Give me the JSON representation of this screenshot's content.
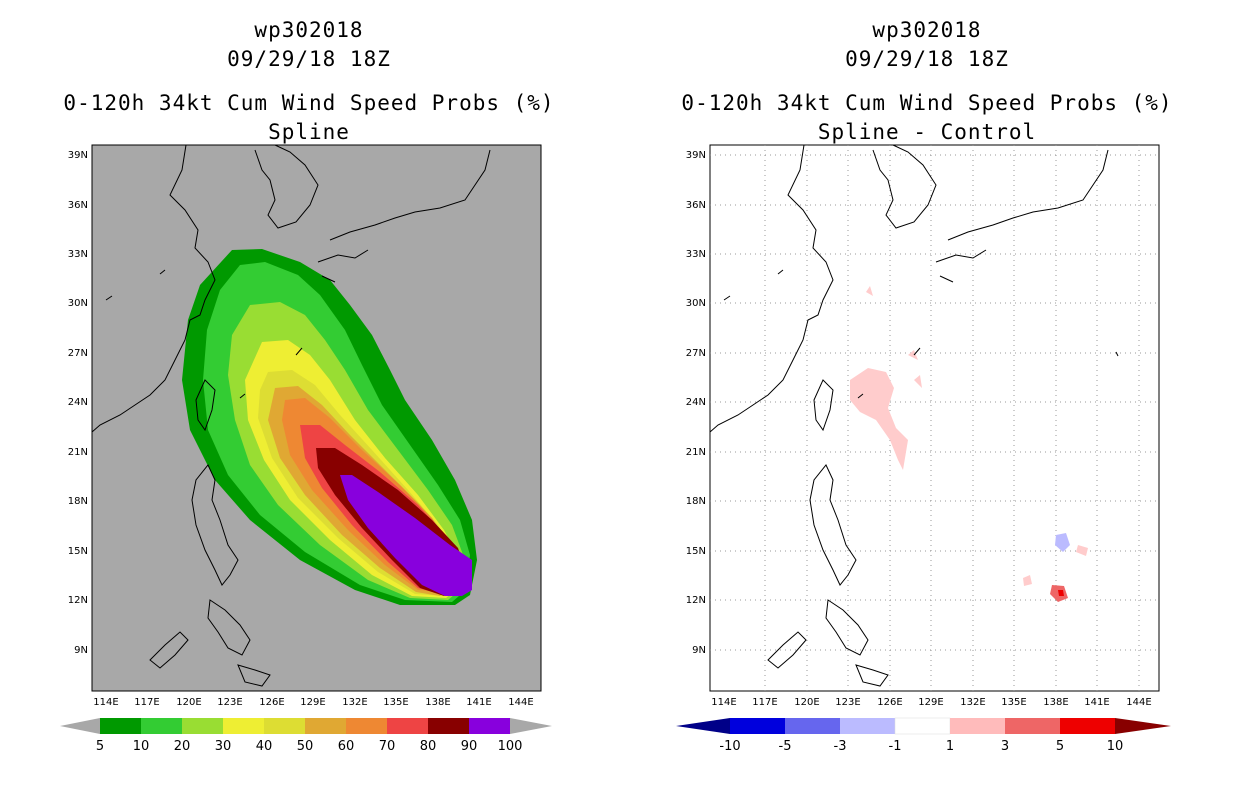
{
  "panels": [
    {
      "id": "left",
      "storm_id": "wp302018",
      "datetime": "09/29/18 18Z",
      "product": "0-120h 34kt Cum Wind Speed Probs (%)",
      "subtitle": "Spline",
      "background": "#a8a8a8",
      "lat_labels": [
        "39N",
        "36N",
        "33N",
        "30N",
        "27N",
        "24N",
        "21N",
        "18N",
        "15N",
        "12N",
        "9N"
      ],
      "lon_labels": [
        "114E",
        "117E",
        "120E",
        "123E",
        "126E",
        "129E",
        "132E",
        "135E",
        "138E",
        "141E",
        "144E"
      ],
      "colorbar": {
        "labels": [
          "5",
          "10",
          "20",
          "30",
          "40",
          "50",
          "60",
          "70",
          "80",
          "90",
          "100"
        ],
        "colors": [
          "#009900",
          "#33cc33",
          "#99dd33",
          "#eeee33",
          "#dddd33",
          "#e0a833",
          "#ee8833",
          "#ee4444",
          "#880000",
          "#8800dd"
        ],
        "end_color": "#a8a8a8"
      }
    },
    {
      "id": "right",
      "storm_id": "wp302018",
      "datetime": "09/29/18 18Z",
      "product": "0-120h 34kt Cum Wind Speed Probs (%)",
      "subtitle": "Spline - Control",
      "background": "#ffffff",
      "lat_labels": [
        "39N",
        "36N",
        "33N",
        "30N",
        "27N",
        "24N",
        "21N",
        "18N",
        "15N",
        "12N",
        "9N"
      ],
      "lon_labels": [
        "114E",
        "117E",
        "120E",
        "123E",
        "126E",
        "129E",
        "132E",
        "135E",
        "138E",
        "141E",
        "144E"
      ],
      "colorbar": {
        "labels": [
          "-10",
          "-5",
          "-3",
          "-1",
          "1",
          "3",
          "5",
          "10"
        ],
        "colors": [
          "#0000dd",
          "#6666ee",
          "#bbbbff",
          "#ffffff",
          "#ffbbbb",
          "#ee6666",
          "#ee0000"
        ],
        "low_end_color": "#000088",
        "high_end_color": "#880000"
      }
    }
  ]
}
